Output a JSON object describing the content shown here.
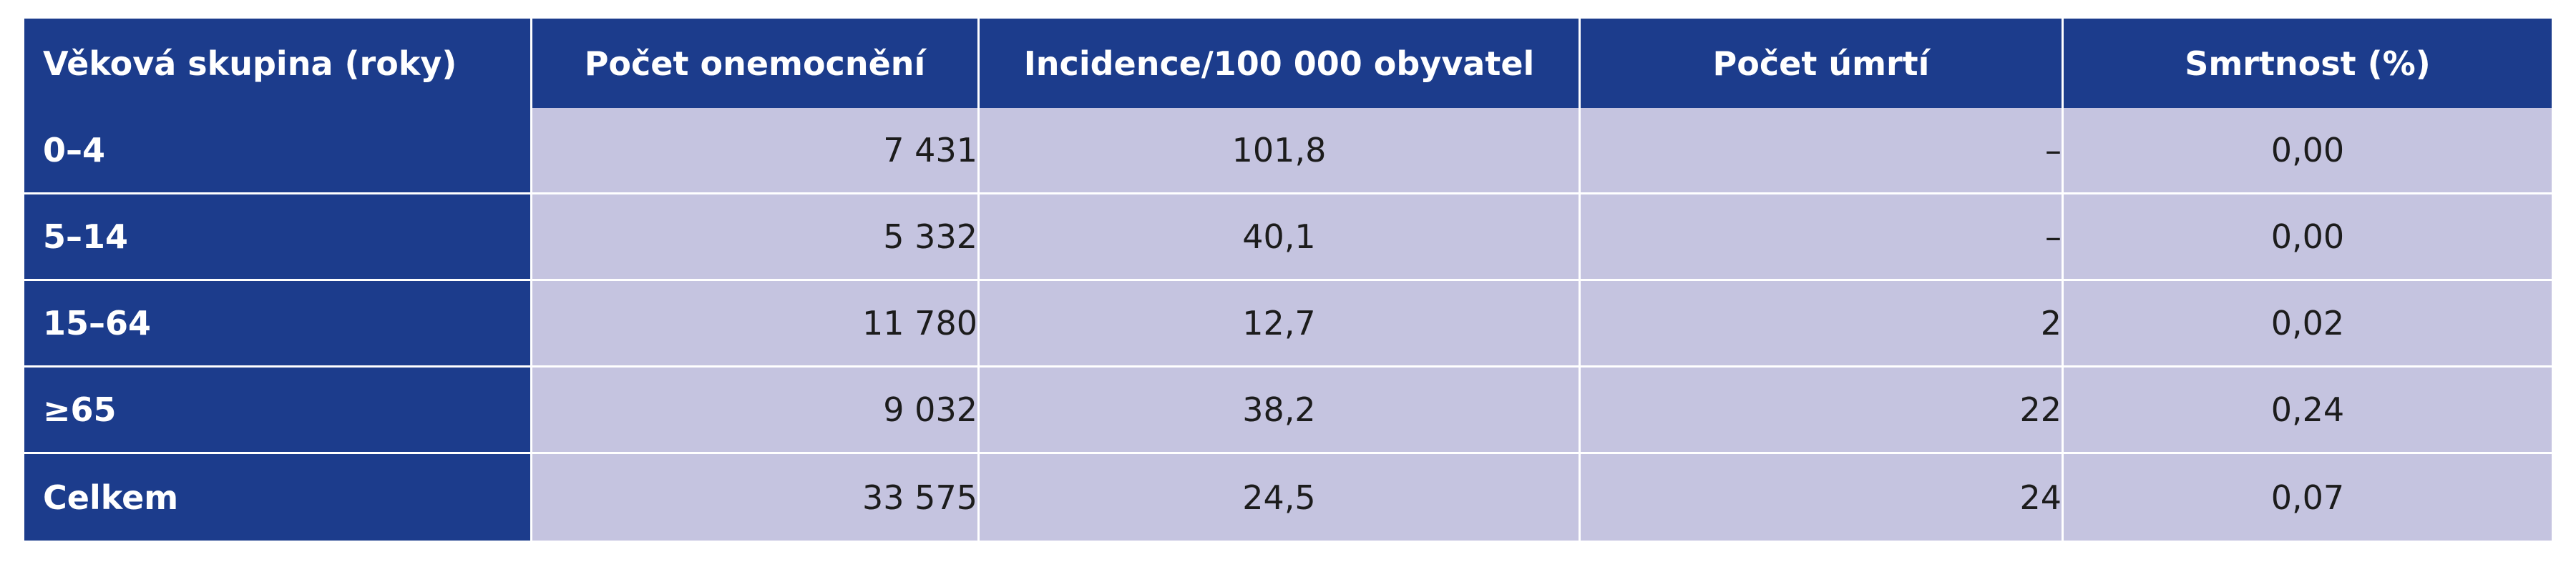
{
  "table": {
    "headers": [
      "Věková skupina (roky)",
      "Počet onemocnění",
      "Incidence/100 000 obyvatel",
      "Počet úmrtí",
      "Smrtnost (%)"
    ],
    "rows": [
      {
        "age_group": "0–4",
        "cases": "7 431",
        "incidence": "101,8",
        "deaths": "–",
        "fatality": "0,00"
      },
      {
        "age_group": "5–14",
        "cases": "5 332",
        "incidence": "40,1",
        "deaths": "–",
        "fatality": "0,00"
      },
      {
        "age_group": "15–64",
        "cases": "11 780",
        "incidence": "12,7",
        "deaths": "2",
        "fatality": "0,02"
      },
      {
        "age_group": "≥65",
        "cases": "9 032",
        "incidence": "38,2",
        "deaths": "22",
        "fatality": "0,24"
      },
      {
        "age_group": "Celkem",
        "cases": "33 575",
        "incidence": "24,5",
        "deaths": "24",
        "fatality": "0,07"
      }
    ]
  },
  "colors": {
    "header_bg": "#1c3c8c",
    "cell_bg": "#c5c4e0",
    "header_text": "#ffffff",
    "cell_text": "#1c1c1c"
  }
}
